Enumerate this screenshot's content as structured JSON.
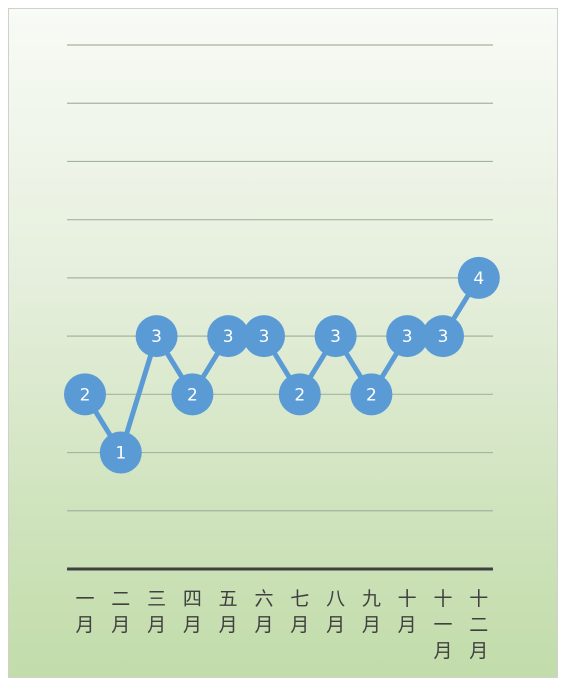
{
  "chart_data": {
    "type": "line",
    "title": "",
    "xlabel": "",
    "ylabel": "",
    "ylim": [
      -1,
      8
    ],
    "grid": true,
    "legend": "none",
    "categories": [
      "一月",
      "二月",
      "三月",
      "四月",
      "五月",
      "六月",
      "七月",
      "八月",
      "九月",
      "十月",
      "十一月",
      "十二月"
    ],
    "category_labels": [
      "一\n月",
      "二\n月",
      "三\n月",
      "四\n月",
      "五\n月",
      "六\n月",
      "七\n月",
      "八\n月",
      "九\n月",
      "十\n月",
      "十\n一\n月",
      "十\n二\n月"
    ],
    "series": [
      {
        "values": [
          2,
          1,
          3,
          2,
          3,
          3,
          2,
          3,
          2,
          3,
          3,
          4
        ],
        "data_labels": [
          "2",
          "1",
          "3",
          "2",
          "3",
          "3",
          "2",
          "3",
          "2",
          "3",
          "3",
          "4"
        ]
      }
    ],
    "colors": {
      "series": "#5b9bd5",
      "marker": "#5b9bd5",
      "marker_label": "#ffffff",
      "gridline": "#a3b5a1",
      "axis": "#404040"
    }
  }
}
